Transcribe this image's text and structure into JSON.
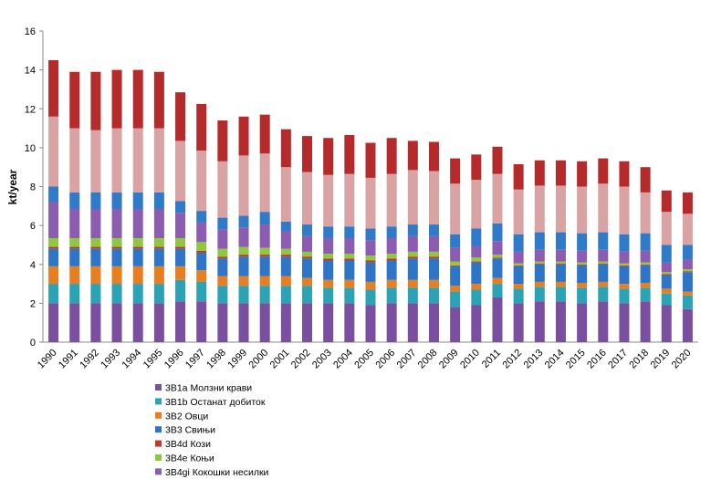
{
  "chart_data": {
    "type": "stacked_bar",
    "y_label": "kt/year",
    "categories": [
      "1990",
      "1991",
      "1992",
      "1993",
      "1994",
      "1995",
      "1996",
      "1997",
      "1998",
      "1999",
      "2000",
      "2001",
      "2002",
      "2003",
      "2004",
      "2005",
      "2006",
      "2007",
      "2008",
      "2009",
      "2010",
      "2011",
      "2012",
      "2013",
      "2014",
      "2015",
      "2016",
      "2017",
      "2018",
      "2019",
      "2020"
    ],
    "ylim": [
      0,
      16
    ],
    "yticks": [
      0,
      2,
      4,
      6,
      8,
      10,
      12,
      14,
      16
    ],
    "series": [
      {
        "name": "3B1a Молзни крави",
        "color": "#7b4fa0",
        "values": [
          2.0,
          2.0,
          2.0,
          2.0,
          2.0,
          2.0,
          2.1,
          2.1,
          2.0,
          2.0,
          2.0,
          2.0,
          2.0,
          2.0,
          2.0,
          1.9,
          2.0,
          2.0,
          2.0,
          1.8,
          1.9,
          2.3,
          2.0,
          2.1,
          2.1,
          2.0,
          2.1,
          2.0,
          2.1,
          1.9,
          1.7
        ]
      },
      {
        "name": "3B1b Останат добиток",
        "color": "#2ba3b5",
        "values": [
          1.0,
          1.0,
          1.0,
          1.0,
          1.0,
          1.0,
          1.1,
          1.0,
          0.9,
          0.9,
          0.9,
          0.9,
          0.9,
          0.8,
          0.8,
          0.8,
          0.8,
          0.8,
          0.8,
          0.8,
          0.8,
          0.7,
          0.75,
          0.75,
          0.75,
          0.8,
          0.75,
          0.75,
          0.7,
          0.6,
          0.7
        ]
      },
      {
        "name": "3B2 Овци",
        "color": "#e67e22",
        "values": [
          0.9,
          0.9,
          0.9,
          0.9,
          0.9,
          0.9,
          0.7,
          0.6,
          0.5,
          0.5,
          0.5,
          0.5,
          0.4,
          0.4,
          0.4,
          0.4,
          0.4,
          0.4,
          0.4,
          0.3,
          0.3,
          0.3,
          0.25,
          0.25,
          0.25,
          0.25,
          0.25,
          0.25,
          0.25,
          0.25,
          0.2
        ]
      },
      {
        "name": "3B3 Свињи",
        "color": "#2e75c8",
        "values": [
          0.9,
          0.9,
          0.9,
          0.9,
          0.9,
          0.9,
          0.9,
          0.9,
          0.9,
          1.0,
          1.0,
          1.0,
          1.0,
          1.0,
          1.0,
          1.0,
          1.0,
          1.1,
          1.1,
          1.0,
          1.1,
          1.0,
          0.9,
          0.9,
          0.9,
          0.9,
          0.9,
          0.9,
          0.9,
          0.7,
          1.0
        ]
      },
      {
        "name": "3B4d Кози",
        "color": "#c0392b",
        "values": [
          0.1,
          0.1,
          0.1,
          0.1,
          0.1,
          0.1,
          0.1,
          0.1,
          0.1,
          0.1,
          0.1,
          0.1,
          0.1,
          0.1,
          0.1,
          0.1,
          0.1,
          0.1,
          0.1,
          0.05,
          0.05,
          0.05,
          0.05,
          0.05,
          0.05,
          0.05,
          0.05,
          0.05,
          0.05,
          0.05,
          0.05
        ]
      },
      {
        "name": "3B4e Коњи",
        "color": "#8fc73e",
        "values": [
          0.45,
          0.45,
          0.45,
          0.45,
          0.45,
          0.45,
          0.45,
          0.45,
          0.4,
          0.4,
          0.35,
          0.3,
          0.25,
          0.25,
          0.25,
          0.25,
          0.25,
          0.25,
          0.25,
          0.2,
          0.2,
          0.15,
          0.1,
          0.1,
          0.1,
          0.1,
          0.1,
          0.1,
          0.1,
          0.1,
          0.1
        ]
      },
      {
        "name": "3B4gi Кокошки  несилки",
        "color": "#8b5cb0",
        "values": [
          1.85,
          1.5,
          1.5,
          1.5,
          1.5,
          1.5,
          1.3,
          1.0,
          1.0,
          1.0,
          1.2,
          0.9,
          0.8,
          0.8,
          0.8,
          0.8,
          0.8,
          0.8,
          0.8,
          0.7,
          0.6,
          0.7,
          0.6,
          0.6,
          0.6,
          0.6,
          0.6,
          0.6,
          0.6,
          0.5,
          0.5
        ]
      },
      {
        "color": "#2f7ac9",
        "values": [
          0.8,
          0.85,
          0.85,
          0.85,
          0.85,
          0.85,
          0.6,
          0.6,
          0.6,
          0.6,
          0.65,
          0.5,
          0.6,
          0.6,
          0.6,
          0.6,
          0.6,
          0.6,
          0.6,
          0.7,
          0.9,
          0.9,
          0.9,
          0.9,
          0.9,
          0.9,
          0.9,
          0.9,
          0.9,
          0.9,
          0.75
        ]
      },
      {
        "color": "#d9a3a3",
        "values": [
          3.6,
          3.3,
          3.2,
          3.3,
          3.3,
          3.3,
          3.1,
          3.1,
          2.9,
          3.1,
          3.0,
          2.8,
          2.7,
          2.65,
          2.7,
          2.6,
          2.7,
          2.8,
          2.75,
          2.6,
          2.5,
          2.55,
          2.3,
          2.4,
          2.4,
          2.4,
          2.5,
          2.45,
          2.1,
          1.7,
          1.6
        ]
      },
      {
        "color": "#b52b2b",
        "values": [
          2.9,
          2.9,
          3.0,
          3.0,
          3.0,
          2.9,
          2.5,
          2.4,
          2.1,
          2.0,
          2.0,
          1.95,
          1.85,
          1.9,
          2.0,
          1.8,
          1.85,
          1.5,
          1.5,
          1.3,
          1.3,
          1.4,
          1.3,
          1.3,
          1.3,
          1.3,
          1.3,
          1.3,
          1.3,
          1.1,
          1.1
        ]
      }
    ]
  }
}
